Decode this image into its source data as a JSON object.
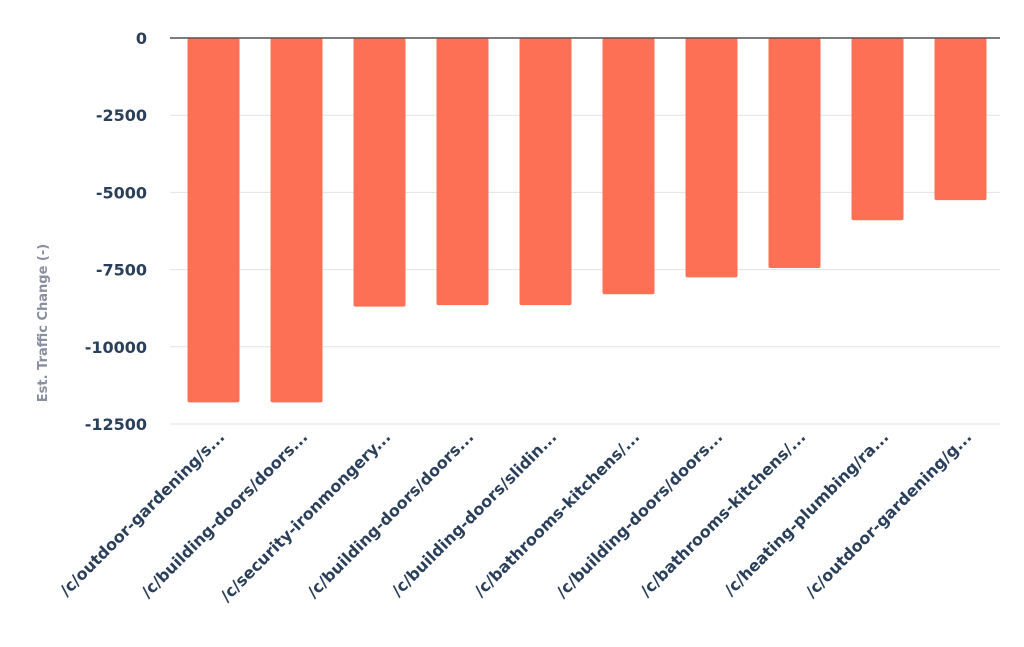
{
  "chart_data": {
    "type": "bar",
    "title": "",
    "xlabel": "",
    "ylabel": "Est. Traffic Change (-)",
    "ylim": [
      -12500,
      0
    ],
    "yticks": [
      0,
      -2500,
      -5000,
      -7500,
      -10000,
      -12500
    ],
    "grid": true,
    "categories": [
      "/c/outdoor-gardening/s...",
      "/c/building-doors/doors...",
      "/c/security-ironmongery...",
      "/c/building-doors/doors...",
      "/c/building-doors/slidin...",
      "/c/bathrooms-kitchens/...",
      "/c/building-doors/doors...",
      "/c/bathrooms-kitchens/...",
      "/c/heating-plumbing/ra...",
      "/c/outdoor-gardening/g..."
    ],
    "values": [
      -11800,
      -11800,
      -8700,
      -8650,
      -8650,
      -8300,
      -7750,
      -7450,
      -5900,
      -5250
    ],
    "bar_color": "#fd7055"
  }
}
